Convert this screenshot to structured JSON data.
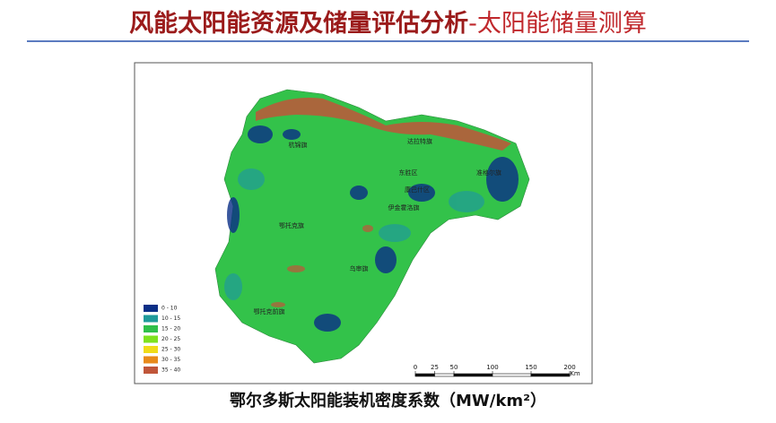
{
  "header": {
    "title_main": "风能太阳能资源及储量评估分析",
    "title_sub": "-太阳能储量测算"
  },
  "map": {
    "places": [
      "杭锦旗",
      "达拉特旗",
      "东胜区",
      "准格尔旗",
      "康巴什区",
      "伊金霍洛旗",
      "鄂托克旗",
      "乌审旗",
      "鄂托克前旗"
    ],
    "legend": [
      {
        "label": "0 - 10",
        "color": "#0a2e86"
      },
      {
        "label": "10 - 15",
        "color": "#1f9a9a"
      },
      {
        "label": "15 - 20",
        "color": "#2fbf4a"
      },
      {
        "label": "20 - 25",
        "color": "#7ee21f"
      },
      {
        "label": "25 - 30",
        "color": "#f0dc18"
      },
      {
        "label": "30 - 35",
        "color": "#e88a1a"
      },
      {
        "label": "35 - 40",
        "color": "#c0563a"
      }
    ],
    "scale_bar": {
      "ticks": [
        0,
        25,
        50,
        100,
        150,
        200
      ],
      "unit": "Km"
    }
  },
  "caption": "鄂尔多斯太阳能装机密度系数（MW/km²）"
}
